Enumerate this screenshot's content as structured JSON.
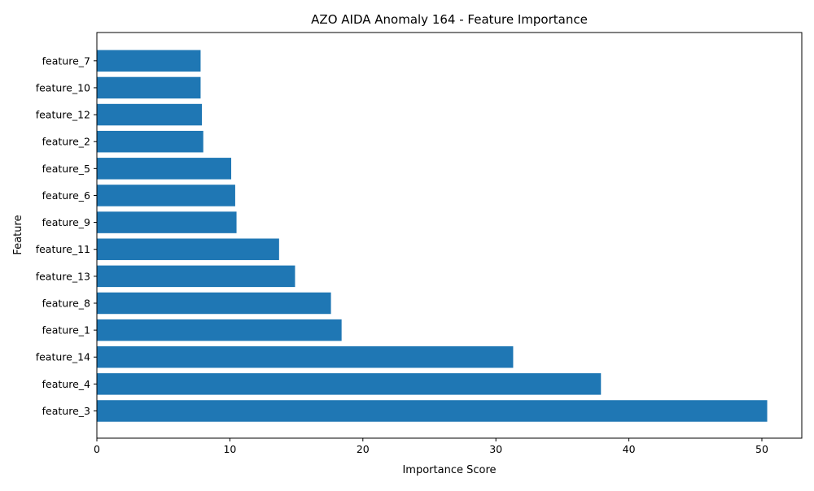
{
  "colors": {
    "bar": "#1f77b4",
    "axis": "#000000",
    "background": "#ffffff"
  },
  "chart_data": {
    "type": "bar",
    "orientation": "horizontal",
    "title": "AZO AIDA Anomaly 164 - Feature Importance",
    "xlabel": "Importance Score",
    "ylabel": "Feature",
    "xlim": [
      0,
      53
    ],
    "xticks": [
      0,
      10,
      20,
      30,
      40,
      50
    ],
    "grid": false,
    "categories": [
      "feature_3",
      "feature_4",
      "feature_14",
      "feature_1",
      "feature_8",
      "feature_13",
      "feature_11",
      "feature_9",
      "feature_6",
      "feature_5",
      "feature_2",
      "feature_12",
      "feature_10",
      "feature_7"
    ],
    "values": [
      50.4,
      37.9,
      31.3,
      18.4,
      17.6,
      14.9,
      13.7,
      10.5,
      10.4,
      10.1,
      8.0,
      7.9,
      7.8,
      7.8
    ]
  }
}
